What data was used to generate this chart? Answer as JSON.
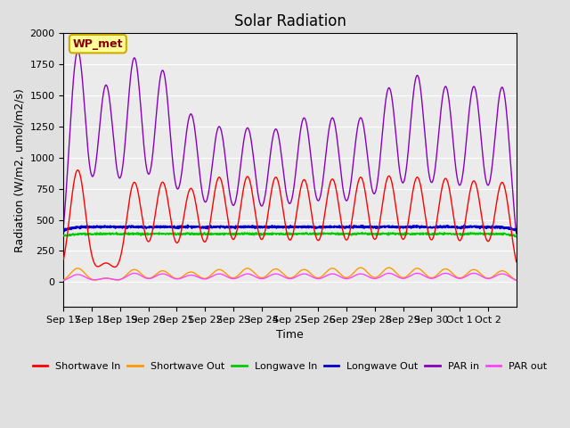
{
  "title": "Solar Radiation",
  "ylabel": "Radiation (W/m2, umol/m2/s)",
  "xlabel": "Time",
  "ylim": [
    -200,
    2000
  ],
  "x_tick_labels": [
    "Sep 17",
    "Sep 18",
    "Sep 19",
    "Sep 20",
    "Sep 21",
    "Sep 22",
    "Sep 23",
    "Sep 24",
    "Sep 25",
    "Sep 26",
    "Sep 27",
    "Sep 28",
    "Sep 29",
    "Sep 30",
    "Oct 1",
    "Oct 2"
  ],
  "background_color": "#e0e0e0",
  "plot_bg_color": "#ebebeb",
  "wp_met_label": "WP_met",
  "legend_entries": [
    "Shortwave In",
    "Shortwave Out",
    "Longwave In",
    "Longwave Out",
    "PAR in",
    "PAR out"
  ],
  "line_colors": [
    "#ff0000",
    "#ff9900",
    "#00cc00",
    "#0000cc",
    "#8800bb",
    "#ff44ff"
  ],
  "line_widths": [
    1.0,
    1.0,
    1.2,
    1.5,
    1.0,
    1.0
  ],
  "num_days": 16,
  "shortwave_in_peaks": [
    900,
    150,
    800,
    800,
    750,
    840,
    845,
    840,
    820,
    825,
    840,
    850,
    840,
    830,
    810,
    800
  ],
  "shortwave_out_peaks": [
    110,
    30,
    100,
    90,
    80,
    100,
    110,
    105,
    100,
    110,
    115,
    115,
    110,
    105,
    100,
    90
  ],
  "longwave_in_base": 355,
  "longwave_out_base": 395,
  "par_in_peaks": [
    1850,
    1570,
    1790,
    1690,
    1340,
    1240,
    1230,
    1220,
    1310,
    1310,
    1310,
    1550,
    1650,
    1560,
    1560,
    1560
  ],
  "par_out_peaks": [
    60,
    30,
    70,
    65,
    55,
    65,
    65,
    65,
    65,
    65,
    65,
    70,
    70,
    70,
    70,
    65
  ],
  "title_fontsize": 12,
  "tick_fontsize": 8,
  "label_fontsize": 9
}
